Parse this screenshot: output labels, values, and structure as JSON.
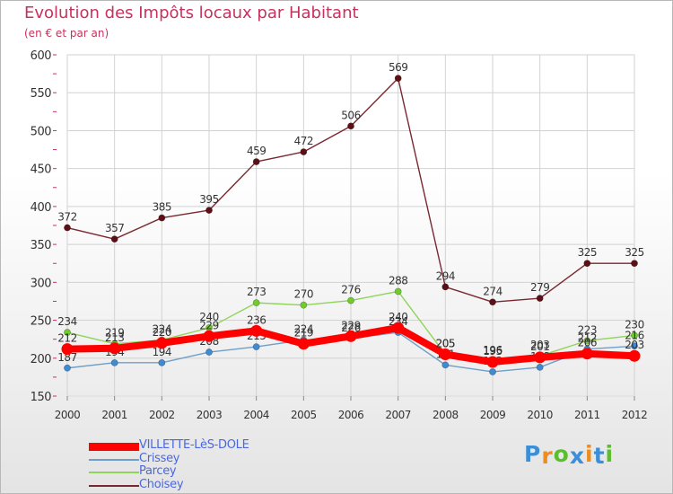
{
  "header": {
    "title": "Evolution des Impôts locaux par Habitant",
    "subtitle": "(en € et par an)"
  },
  "colors": {
    "title": "#c8315d",
    "legend_text": "#4a67e0",
    "grid": "#d2d2d2",
    "tick_mark": "#c8315d"
  },
  "chart_data": {
    "type": "line",
    "title": "Evolution des Impôts locaux par Habitant",
    "subtitle": "(en € et par an)",
    "xlabel": "",
    "ylabel": "",
    "ylim": [
      150,
      600
    ],
    "yticks": [
      150,
      200,
      250,
      300,
      350,
      400,
      450,
      500,
      550,
      600
    ],
    "grid": true,
    "categories": [
      "2000",
      "2001",
      "2002",
      "2003",
      "2004",
      "2005",
      "2006",
      "2007",
      "2008",
      "2009",
      "2010",
      "2011",
      "2012"
    ],
    "series": [
      {
        "name": "Choisey",
        "color": "#7a2830",
        "marker": "#5c1016",
        "values": [
          372,
          357,
          385,
          395,
          459,
          472,
          506,
          569,
          294,
          274,
          279,
          325,
          325
        ],
        "labels": [
          "372",
          "357",
          "385",
          "395",
          "459",
          "472",
          "506",
          "569",
          "294",
          "274",
          "279",
          "325",
          "325"
        ]
      },
      {
        "name": "Parcey",
        "color": "#8fd45a",
        "marker": "#6fcc2a",
        "values": [
          234,
          219,
          224,
          240,
          273,
          270,
          276,
          288,
          205,
          196,
          203,
          223,
          230
        ],
        "labels": [
          "234",
          "219",
          "224",
          "240",
          "273",
          "270",
          "276",
          "288",
          "205",
          "196",
          "203",
          "223",
          "230"
        ]
      },
      {
        "name": "Crissey",
        "color": "#6f9ec8",
        "marker": "#3f8ad0",
        "values": [
          187,
          194,
          194,
          208,
          215,
          224,
          226,
          234,
          191,
          182,
          188,
          212,
          216
        ],
        "labels": [
          "187",
          "194",
          "194",
          "208",
          "215",
          "224",
          "226",
          "234",
          "191",
          "182",
          "188",
          "212",
          "216"
        ]
      },
      {
        "name": "VILLETTE-LèS-DOLE",
        "color": "#ff0000",
        "marker": "#ff0000",
        "values": [
          212,
          213,
          220,
          229,
          236,
          219,
          229,
          240,
          205,
          195,
          201,
          206,
          203
        ],
        "labels": [
          "212",
          "213",
          "220",
          "229",
          "236",
          "219",
          "229",
          "240",
          "205",
          "195",
          "201",
          "206",
          "203"
        ]
      }
    ]
  },
  "legend": [
    {
      "label": "VILLETTE-LèS-DOLE",
      "color": "#ff0000"
    },
    {
      "label": "Crissey",
      "color": "#6f9ec8"
    },
    {
      "label": "Parcey",
      "color": "#8fd45a"
    },
    {
      "label": "Choisey",
      "color": "#7a2830"
    }
  ],
  "logo": {
    "text": "Proxiti",
    "letters": [
      "P",
      "r",
      "o",
      "x",
      "i",
      "t",
      "i"
    ],
    "colors": [
      "#3a8fd8",
      "#f08c1e",
      "#5bbf2c",
      "#3a8fd8",
      "#f08c1e",
      "#3a8fd8",
      "#5bbf2c"
    ]
  }
}
